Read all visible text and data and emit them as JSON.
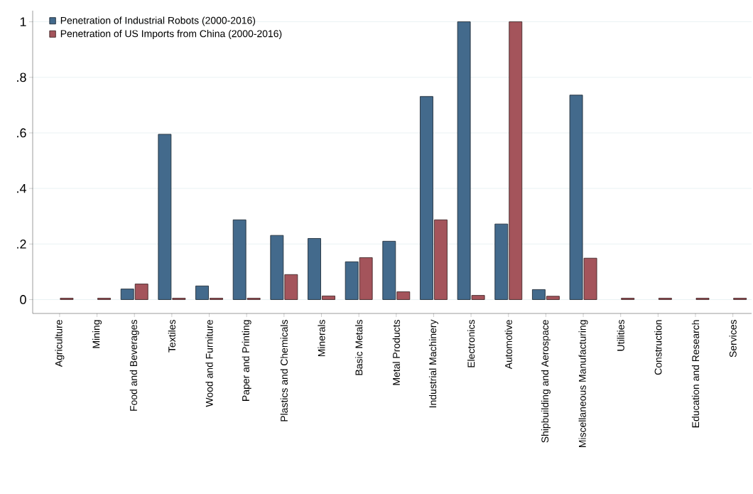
{
  "chart_data": {
    "type": "bar",
    "categories": [
      "Agriculture",
      "Mining",
      "Food and Beverages",
      "Textiles",
      "Wood and Furniture",
      "Paper and Printing",
      "Plastics and Chemicals",
      "Minerals",
      "Basic Metals",
      "Metal Products",
      "Industrial Machinery",
      "Electronics",
      "Automotive",
      "Shipbuilding and Aerospace",
      "Miscellaneous Manufacturing",
      "Utilities",
      "Construction",
      "Education and Research",
      "Services"
    ],
    "series": [
      {
        "name": "Penetration of Industrial Robots (2000-2016)",
        "color": "#436a8c",
        "values": [
          null,
          null,
          0.038,
          0.595,
          0.049,
          0.287,
          0.231,
          0.22,
          0.136,
          0.21,
          0.731,
          1.0,
          0.272,
          0.036,
          0.736,
          null,
          null,
          null,
          null
        ]
      },
      {
        "name": "Penetration of US Imports from China (2000-2016)",
        "color": "#a4545b",
        "values": [
          0.005,
          0.005,
          0.056,
          0.005,
          0.005,
          0.005,
          0.09,
          0.013,
          0.151,
          0.028,
          0.287,
          0.015,
          1.0,
          0.012,
          0.149,
          0.005,
          0.005,
          0.005,
          0.005
        ]
      }
    ],
    "ylim": [
      -0.05,
      1.04
    ],
    "yticks": [
      0,
      {
        "value": 0.2,
        "label": ".2"
      },
      {
        "value": 0.4,
        "label": ".4"
      },
      {
        "value": 0.6,
        "label": ".6"
      },
      {
        "value": 0.8,
        "label": ".8"
      },
      1
    ],
    "grid": "y",
    "legend": "top left"
  }
}
